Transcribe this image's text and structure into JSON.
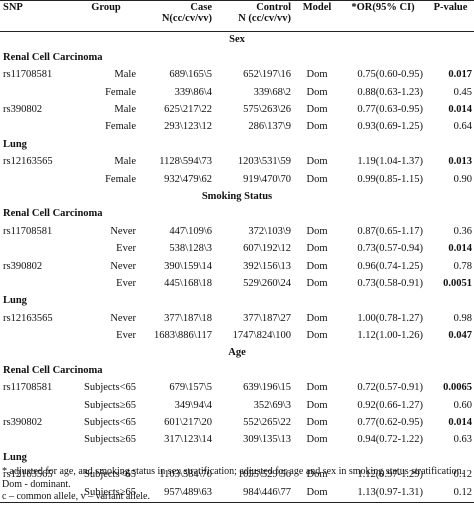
{
  "headers": {
    "snp": "SNP",
    "group": "Group",
    "case_1": "Case",
    "case_2": "N(cc/cv/vv)",
    "control_1": "Control",
    "control_2": "N (cc/cv/vv)",
    "model": "Model",
    "or": "*OR(95% CI)",
    "p": "P-value"
  },
  "rows": [
    {
      "kind": "section",
      "title": "Sex"
    },
    {
      "kind": "subsection",
      "title": "Renal Cell Carcinoma"
    },
    {
      "kind": "data",
      "snp": "rs11708581",
      "group": "Male",
      "case": "689\\165\\5",
      "control": "652\\197\\16",
      "model": "Dom",
      "or": "0.75(0.60-0.95)",
      "p": "0.017",
      "bold": true
    },
    {
      "kind": "data",
      "snp": "",
      "group": "Female",
      "case": "339\\86\\4",
      "control": "339\\68\\2",
      "model": "Dom",
      "or": "0.88(0.63-1.23)",
      "p": "0.45",
      "bold": false
    },
    {
      "kind": "data",
      "snp": "rs390802",
      "group": "Male",
      "case": "625\\217\\22",
      "control": "575\\263\\26",
      "model": "Dom",
      "or": "0.77(0.63-0.95)",
      "p": "0.014",
      "bold": true
    },
    {
      "kind": "data",
      "snp": "",
      "group": "Female",
      "case": "293\\123\\12",
      "control": "286\\137\\9",
      "model": "Dom",
      "or": "0.93(0.69-1.25)",
      "p": "0.64",
      "bold": false
    },
    {
      "kind": "subsection",
      "title": "Lung"
    },
    {
      "kind": "data",
      "snp": "rs12163565",
      "group": "Male",
      "case": "1128\\594\\73",
      "control": "1203\\531\\59",
      "model": "Dom",
      "or": "1.19(1.04-1.37)",
      "p": "0.013",
      "bold": true
    },
    {
      "kind": "data",
      "snp": "",
      "group": "Female",
      "case": "932\\479\\62",
      "control": "919\\470\\70",
      "model": "Dom",
      "or": "0.99(0.85-1.15)",
      "p": "0.90",
      "bold": false
    },
    {
      "kind": "section",
      "title": "Smoking Status"
    },
    {
      "kind": "subsection",
      "title": "Renal Cell Carcinoma"
    },
    {
      "kind": "data",
      "snp": "rs11708581",
      "group": "Never",
      "case": "447\\109\\6",
      "control": "372\\103\\9",
      "model": "Dom",
      "or": "0.87(0.65-1.17)",
      "p": "0.36",
      "bold": false
    },
    {
      "kind": "data",
      "snp": "",
      "group": "Ever",
      "case": "538\\128\\3",
      "control": "607\\192\\12",
      "model": "Dom",
      "or": "0.73(0.57-0.94)",
      "p": "0.014",
      "bold": true
    },
    {
      "kind": "data",
      "snp": "rs390802",
      "group": "Never",
      "case": "390\\159\\14",
      "control": "392\\156\\13",
      "model": "Dom",
      "or": "0.96(0.74-1.25)",
      "p": "0.78",
      "bold": false
    },
    {
      "kind": "data",
      "snp": "",
      "group": "Ever",
      "case": "445\\168\\18",
      "control": "529\\260\\24",
      "model": "Dom",
      "or": "0.73(0.58-0.91)",
      "p": "0.0051",
      "bold": true
    },
    {
      "kind": "subsection",
      "title": "Lung"
    },
    {
      "kind": "data",
      "snp": "rs12163565",
      "group": "Never",
      "case": "377\\187\\18",
      "control": "377\\187\\27",
      "model": "Dom",
      "or": "1.00(0.78-1.27)",
      "p": "0.98",
      "bold": false
    },
    {
      "kind": "data",
      "snp": "",
      "group": "Ever",
      "case": "1683\\886\\117",
      "control": "1747\\824\\100",
      "model": "Dom",
      "or": "1.12(1.00-1.26)",
      "p": "0.047",
      "bold": true
    },
    {
      "kind": "section",
      "title": "Age"
    },
    {
      "kind": "subsection",
      "title": "Renal Cell Carcinoma"
    },
    {
      "kind": "data",
      "snp": "rs11708581",
      "group": "Subjects<65",
      "case": "679\\157\\5",
      "control": "639\\196\\15",
      "model": "Dom",
      "or": "0.72(0.57-0.91)",
      "p": "0.0065",
      "bold": true
    },
    {
      "kind": "data",
      "snp": "",
      "group": "Subjects≥65",
      "case": "349\\94\\4",
      "control": "352\\69\\3",
      "model": "Dom",
      "or": "0.92(0.66-1.27)",
      "p": "0.60",
      "bold": false
    },
    {
      "kind": "data",
      "snp": "rs390802",
      "group": "Subjects<65",
      "case": "601\\217\\20",
      "control": "552\\265\\22",
      "model": "Dom",
      "or": "0.77(0.62-0.95)",
      "p": "0.014",
      "bold": true
    },
    {
      "kind": "data",
      "snp": "",
      "group": "Subjects≥65",
      "case": "317\\123\\14",
      "control": "309\\135\\13",
      "model": "Dom",
      "or": "0.94(0.72-1.22)",
      "p": "0.63",
      "bold": false
    },
    {
      "kind": "subsection",
      "title": "Lung"
    },
    {
      "kind": "data",
      "snp": "rs12163565",
      "group": "Subjects<65",
      "case": "1103\\584\\70",
      "control": "1055\\529\\56",
      "model": "Dom",
      "or": "1.12(0.97-1.29)",
      "p": "0.12",
      "bold": false
    },
    {
      "kind": "data",
      "snp": "",
      "group": "Subjects≥65",
      "case": "957\\489\\63",
      "control": "984\\446\\77",
      "model": "Dom",
      "or": "1.13(0.97-1.31)",
      "p": "0.12",
      "bold": false
    }
  ],
  "notes": [
    "* adjusted for age, and smoking status in sex stratification; adjusted for age and sex in smoking status stratification.",
    "Dom - dominant.",
    "c – common allele, v – variant allele."
  ]
}
